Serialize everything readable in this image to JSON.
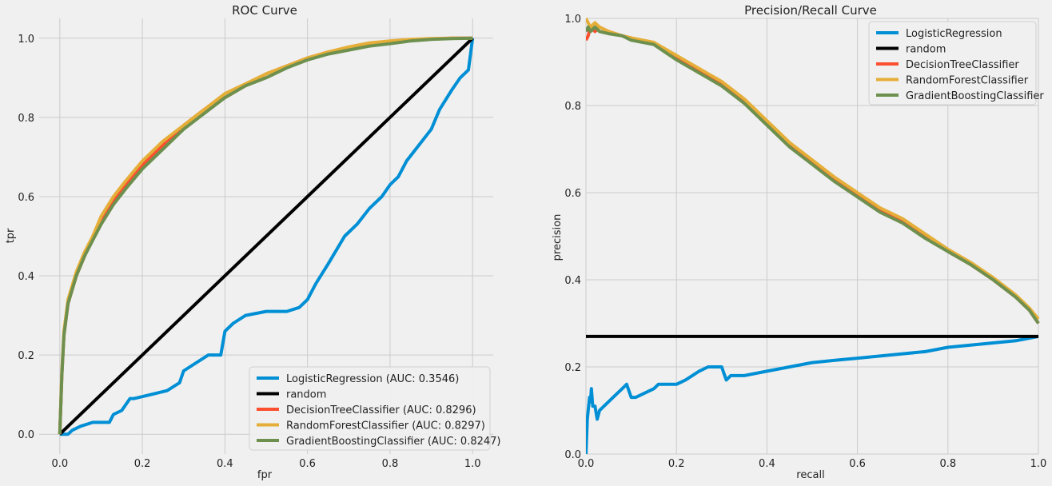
{
  "chart_data": [
    {
      "type": "line",
      "title": "ROC Curve",
      "xlabel": "fpr",
      "ylabel": "tpr",
      "xlim": [
        -0.05,
        1.05
      ],
      "ylim": [
        -0.05,
        1.05
      ],
      "xticks": [
        "0.0",
        "0.2",
        "0.4",
        "0.6",
        "0.8",
        "1.0"
      ],
      "yticks": [
        "0.0",
        "0.2",
        "0.4",
        "0.6",
        "0.8",
        "1.0"
      ],
      "grid": true,
      "legend_position": "lower right",
      "series": [
        {
          "name": "LogisticRegression (AUC: 0.3546)",
          "color": "#008fd5",
          "x": [
            0,
            0.02,
            0.03,
            0.05,
            0.08,
            0.12,
            0.13,
            0.15,
            0.17,
            0.18,
            0.22,
            0.26,
            0.29,
            0.3,
            0.33,
            0.36,
            0.39,
            0.4,
            0.42,
            0.45,
            0.5,
            0.55,
            0.58,
            0.6,
            0.62,
            0.65,
            0.69,
            0.72,
            0.75,
            0.78,
            0.8,
            0.82,
            0.84,
            0.87,
            0.9,
            0.92,
            0.95,
            0.97,
            0.99,
            1.0
          ],
          "y": [
            0,
            0,
            0.01,
            0.02,
            0.03,
            0.03,
            0.05,
            0.06,
            0.09,
            0.09,
            0.1,
            0.11,
            0.13,
            0.16,
            0.18,
            0.2,
            0.2,
            0.26,
            0.28,
            0.3,
            0.31,
            0.31,
            0.32,
            0.34,
            0.38,
            0.43,
            0.5,
            0.53,
            0.57,
            0.6,
            0.63,
            0.65,
            0.69,
            0.73,
            0.77,
            0.82,
            0.87,
            0.9,
            0.92,
            1.0
          ]
        },
        {
          "name": "random",
          "color": "#000000",
          "x": [
            0,
            1
          ],
          "y": [
            0,
            1
          ]
        },
        {
          "name": "DecisionTreeClassifier (AUC: 0.8296)",
          "color": "#fc4f30",
          "x": [
            0,
            0.005,
            0.01,
            0.02,
            0.04,
            0.06,
            0.08,
            0.1,
            0.13,
            0.16,
            0.2,
            0.25,
            0.3,
            0.35,
            0.4,
            0.45,
            0.5,
            0.55,
            0.6,
            0.65,
            0.7,
            0.75,
            0.8,
            0.85,
            0.9,
            0.95,
            1.0
          ],
          "y": [
            0,
            0.15,
            0.25,
            0.33,
            0.4,
            0.45,
            0.5,
            0.54,
            0.59,
            0.63,
            0.68,
            0.73,
            0.78,
            0.82,
            0.85,
            0.88,
            0.91,
            0.93,
            0.95,
            0.965,
            0.975,
            0.985,
            0.99,
            0.995,
            0.998,
            1.0,
            1.0
          ]
        },
        {
          "name": "RandomForestClassifier (AUC: 0.8297)",
          "color": "#e5ae38",
          "x": [
            0,
            0.005,
            0.01,
            0.02,
            0.04,
            0.06,
            0.08,
            0.1,
            0.13,
            0.16,
            0.2,
            0.25,
            0.3,
            0.35,
            0.4,
            0.45,
            0.5,
            0.55,
            0.6,
            0.65,
            0.7,
            0.75,
            0.8,
            0.85,
            0.9,
            0.95,
            1.0
          ],
          "y": [
            0,
            0.16,
            0.26,
            0.34,
            0.41,
            0.46,
            0.5,
            0.55,
            0.6,
            0.64,
            0.69,
            0.74,
            0.78,
            0.82,
            0.86,
            0.885,
            0.91,
            0.93,
            0.95,
            0.965,
            0.978,
            0.988,
            0.993,
            0.997,
            0.999,
            1.0,
            1.0
          ]
        },
        {
          "name": "GradientBoostingClassifier (AUC: 0.8247)",
          "color": "#6d904f",
          "x": [
            0,
            0.005,
            0.01,
            0.02,
            0.04,
            0.06,
            0.08,
            0.1,
            0.13,
            0.16,
            0.2,
            0.25,
            0.3,
            0.35,
            0.4,
            0.45,
            0.5,
            0.55,
            0.6,
            0.65,
            0.7,
            0.75,
            0.8,
            0.85,
            0.9,
            0.95,
            1.0
          ],
          "y": [
            0,
            0.15,
            0.25,
            0.33,
            0.4,
            0.45,
            0.49,
            0.53,
            0.58,
            0.62,
            0.67,
            0.72,
            0.77,
            0.81,
            0.85,
            0.88,
            0.9,
            0.925,
            0.945,
            0.96,
            0.97,
            0.98,
            0.986,
            0.993,
            0.997,
            0.999,
            1.0
          ]
        }
      ]
    },
    {
      "type": "line",
      "title": "Precision/Recall Curve",
      "xlabel": "recall",
      "ylabel": "precision",
      "xlim": [
        0,
        1
      ],
      "ylim": [
        0,
        1
      ],
      "xticks": [
        "0.0",
        "0.2",
        "0.4",
        "0.6",
        "0.8",
        "1.0"
      ],
      "yticks": [
        "0.0",
        "0.2",
        "0.4",
        "0.6",
        "0.8",
        "1.0"
      ],
      "grid": true,
      "legend_position": "upper right",
      "series": [
        {
          "name": "LogisticRegression",
          "color": "#008fd5",
          "x": [
            0,
            0.003,
            0.005,
            0.008,
            0.01,
            0.012,
            0.015,
            0.02,
            0.025,
            0.03,
            0.04,
            0.05,
            0.06,
            0.07,
            0.08,
            0.09,
            0.1,
            0.11,
            0.13,
            0.15,
            0.16,
            0.18,
            0.2,
            0.22,
            0.25,
            0.27,
            0.3,
            0.31,
            0.32,
            0.35,
            0.4,
            0.45,
            0.5,
            0.55,
            0.6,
            0.65,
            0.7,
            0.75,
            0.8,
            0.85,
            0.9,
            0.95,
            1.0
          ],
          "y": [
            0,
            0.08,
            0.1,
            0.13,
            0.12,
            0.15,
            0.11,
            0.11,
            0.08,
            0.1,
            0.11,
            0.12,
            0.13,
            0.14,
            0.15,
            0.16,
            0.13,
            0.13,
            0.14,
            0.15,
            0.16,
            0.16,
            0.16,
            0.17,
            0.19,
            0.2,
            0.2,
            0.17,
            0.18,
            0.18,
            0.19,
            0.2,
            0.21,
            0.215,
            0.22,
            0.225,
            0.23,
            0.235,
            0.245,
            0.25,
            0.255,
            0.26,
            0.27
          ]
        },
        {
          "name": "random",
          "color": "#000000",
          "x": [
            0,
            1
          ],
          "y": [
            0.27,
            0.27
          ]
        },
        {
          "name": "DecisionTreeClassifier",
          "color": "#fc4f30",
          "x": [
            0,
            0.005,
            0.01,
            0.02,
            0.03,
            0.05,
            0.08,
            0.1,
            0.15,
            0.2,
            0.25,
            0.3,
            0.35,
            0.4,
            0.45,
            0.5,
            0.55,
            0.6,
            0.65,
            0.7,
            0.75,
            0.8,
            0.85,
            0.9,
            0.95,
            0.98,
            1.0
          ],
          "y": [
            0.95,
            0.96,
            0.98,
            0.97,
            0.98,
            0.97,
            0.96,
            0.955,
            0.94,
            0.91,
            0.88,
            0.85,
            0.81,
            0.76,
            0.71,
            0.67,
            0.63,
            0.595,
            0.56,
            0.535,
            0.5,
            0.465,
            0.435,
            0.4,
            0.36,
            0.33,
            0.3
          ]
        },
        {
          "name": "RandomForestClassifier",
          "color": "#e5ae38",
          "x": [
            0,
            0.005,
            0.01,
            0.02,
            0.03,
            0.05,
            0.08,
            0.1,
            0.15,
            0.2,
            0.25,
            0.3,
            0.35,
            0.4,
            0.45,
            0.5,
            0.55,
            0.6,
            0.65,
            0.7,
            0.75,
            0.8,
            0.85,
            0.9,
            0.95,
            0.98,
            1.0
          ],
          "y": [
            1.0,
            0.99,
            0.98,
            0.99,
            0.98,
            0.97,
            0.96,
            0.955,
            0.945,
            0.915,
            0.885,
            0.855,
            0.815,
            0.765,
            0.715,
            0.675,
            0.635,
            0.6,
            0.565,
            0.54,
            0.505,
            0.47,
            0.44,
            0.405,
            0.365,
            0.335,
            0.31
          ]
        },
        {
          "name": "GradientBoostingClassifier",
          "color": "#6d904f",
          "x": [
            0,
            0.005,
            0.01,
            0.02,
            0.03,
            0.05,
            0.08,
            0.1,
            0.15,
            0.2,
            0.25,
            0.3,
            0.35,
            0.4,
            0.45,
            0.5,
            0.55,
            0.6,
            0.65,
            0.7,
            0.75,
            0.8,
            0.85,
            0.9,
            0.95,
            0.98,
            1.0
          ],
          "y": [
            0.97,
            0.98,
            0.97,
            0.98,
            0.97,
            0.965,
            0.96,
            0.95,
            0.94,
            0.905,
            0.875,
            0.845,
            0.805,
            0.755,
            0.705,
            0.665,
            0.625,
            0.59,
            0.555,
            0.53,
            0.495,
            0.465,
            0.435,
            0.4,
            0.36,
            0.33,
            0.3
          ]
        }
      ]
    }
  ]
}
